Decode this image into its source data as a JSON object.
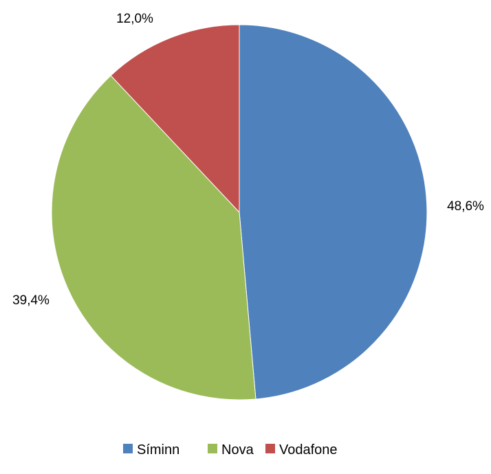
{
  "chart_data": {
    "type": "pie",
    "categories": [
      "Síminn",
      "Nova",
      "Vodafone"
    ],
    "values": [
      48.6,
      39.4,
      12.0
    ],
    "data_labels": [
      "48,6%",
      "39,4%",
      "12,0%"
    ],
    "colors": [
      "#4F81BD",
      "#9BBB59",
      "#C0504D"
    ],
    "start_angle_deg": 0,
    "direction": "clockwise",
    "legend": {
      "position": "bottom",
      "entries": [
        "Síminn",
        "Nova",
        "Vodafone"
      ]
    },
    "title": ""
  }
}
